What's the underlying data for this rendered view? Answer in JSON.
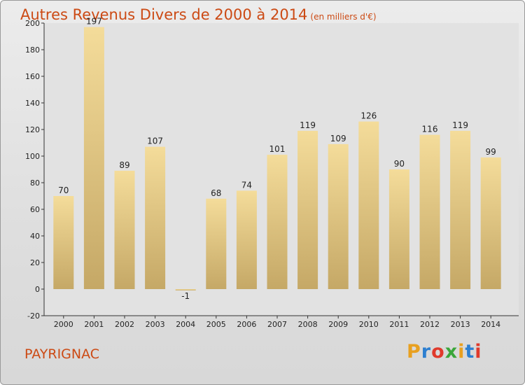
{
  "header": {
    "title": "Autres Revenus Divers de 2000 à 2014",
    "unit": "(en milliers d'€)"
  },
  "footer": {
    "commune": "PAYRIGNAC",
    "logo_letters": [
      "P",
      "r",
      "o",
      "x",
      "i",
      "t",
      "i"
    ],
    "logo_colors": [
      "#e8a020",
      "#2d7fd0",
      "#e03a2c",
      "#3aa63a",
      "#e8a020",
      "#2d7fd0",
      "#e03a2c"
    ]
  },
  "colors": {
    "bar_light": "#f4dc9a",
    "bar_dark": "#c5a866",
    "plot_bg": "#e2e2e2",
    "title": "#cc4a14"
  },
  "chart_data": {
    "type": "bar",
    "categories": [
      "2000",
      "2001",
      "2002",
      "2003",
      "2004",
      "2005",
      "2006",
      "2007",
      "2008",
      "2009",
      "2010",
      "2011",
      "2012",
      "2013",
      "2014"
    ],
    "values": [
      70,
      197,
      89,
      107,
      -1,
      68,
      74,
      101,
      119,
      109,
      126,
      90,
      116,
      119,
      99
    ],
    "title": "Autres Revenus Divers de 2000 à 2014",
    "xlabel": "",
    "ylabel": "",
    "ylim": [
      -20,
      200
    ],
    "yticks": [
      -20,
      0,
      20,
      40,
      60,
      80,
      100,
      120,
      140,
      160,
      180,
      200
    ],
    "grid": false,
    "legend": "none"
  }
}
